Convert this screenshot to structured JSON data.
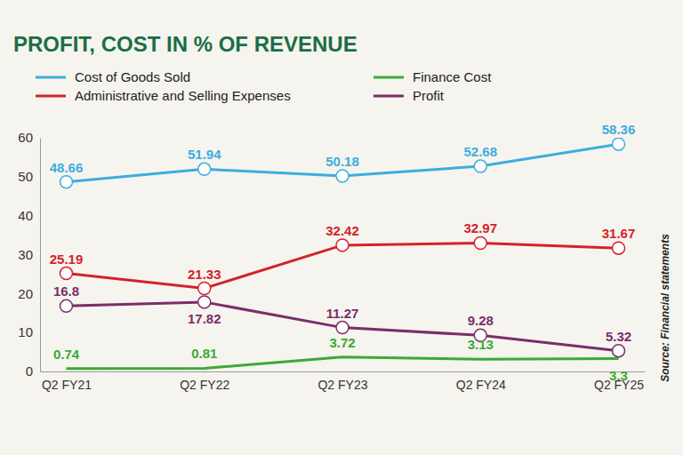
{
  "chart_data": {
    "type": "line",
    "title": "PROFIT, COST IN % OF REVENUE",
    "source": "Source: Financial statements",
    "categories": [
      "Q2 FY21",
      "Q2 FY22",
      "Q2 FY23",
      "Q2 FY24",
      "Q2 FY25"
    ],
    "series": [
      {
        "name": "Cost of Goods Sold",
        "color": "#3aaee0",
        "marker": "circle",
        "values": [
          48.66,
          51.94,
          50.18,
          52.68,
          58.36
        ]
      },
      {
        "name": "Administrative and Selling Expenses",
        "color": "#d3222a",
        "marker": "circle",
        "values": [
          25.19,
          21.33,
          32.42,
          32.97,
          31.67
        ]
      },
      {
        "name": "Finance Cost",
        "color": "#3aaa35",
        "marker": "none",
        "values": [
          0.74,
          0.81,
          3.72,
          3.13,
          3.3
        ]
      },
      {
        "name": "Profit",
        "color": "#7a2d6c",
        "marker": "circle",
        "values": [
          16.8,
          17.82,
          11.27,
          9.28,
          5.32
        ]
      }
    ],
    "ylim": [
      0,
      60
    ],
    "yticks": [
      0,
      10,
      20,
      30,
      40,
      50,
      60
    ],
    "grid": false,
    "legend": "top",
    "data_labels": true
  }
}
